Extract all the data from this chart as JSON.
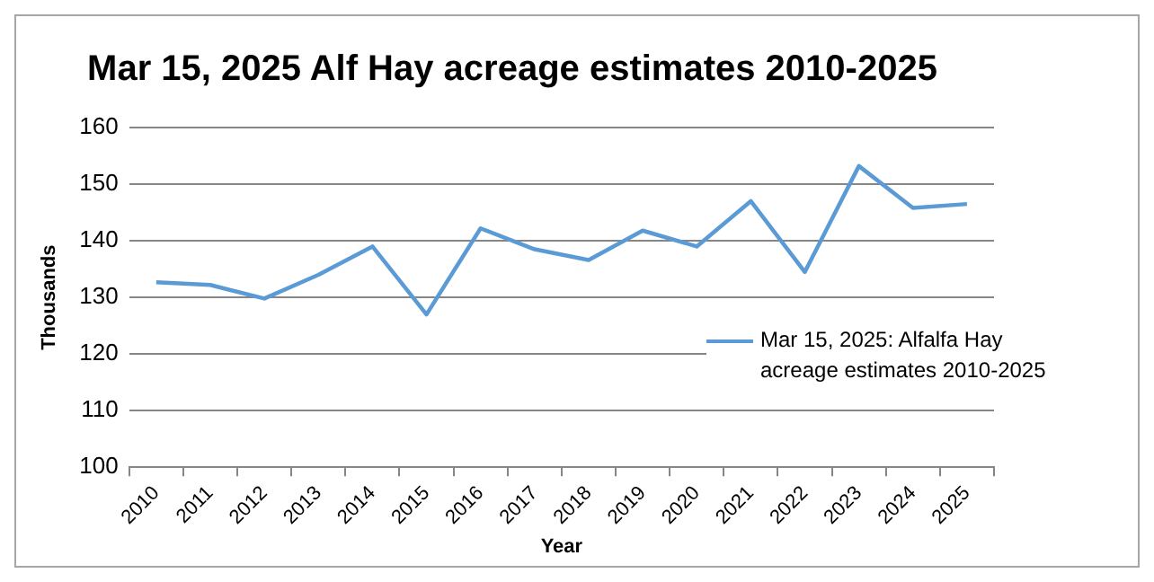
{
  "chart_data": {
    "type": "line",
    "title": "Mar 15, 2025 Alf Hay acreage estimates 2010-2025",
    "xlabel": "Year",
    "ylabel": "Thousands",
    "categories": [
      "2010",
      "2011",
      "2012",
      "2013",
      "2014",
      "2015",
      "2016",
      "2017",
      "2018",
      "2019",
      "2020",
      "2021",
      "2022",
      "2023",
      "2024",
      "2025"
    ],
    "series": [
      {
        "name": "Mar 15, 2025: Alfalfa Hay acreage estimates 2010-2025",
        "color": "#5b9bd5",
        "values": [
          132.7,
          132.2,
          129.8,
          134,
          139,
          127,
          142.2,
          138.5,
          136.6,
          141.8,
          139,
          147,
          134.5,
          153.2,
          145.8,
          146.5
        ]
      }
    ],
    "ylim": [
      100,
      160
    ],
    "yticks": [
      100,
      110,
      120,
      130,
      140,
      150,
      160
    ],
    "grid": "y",
    "legend": "right",
    "marker": "none",
    "line_style": "solid"
  }
}
